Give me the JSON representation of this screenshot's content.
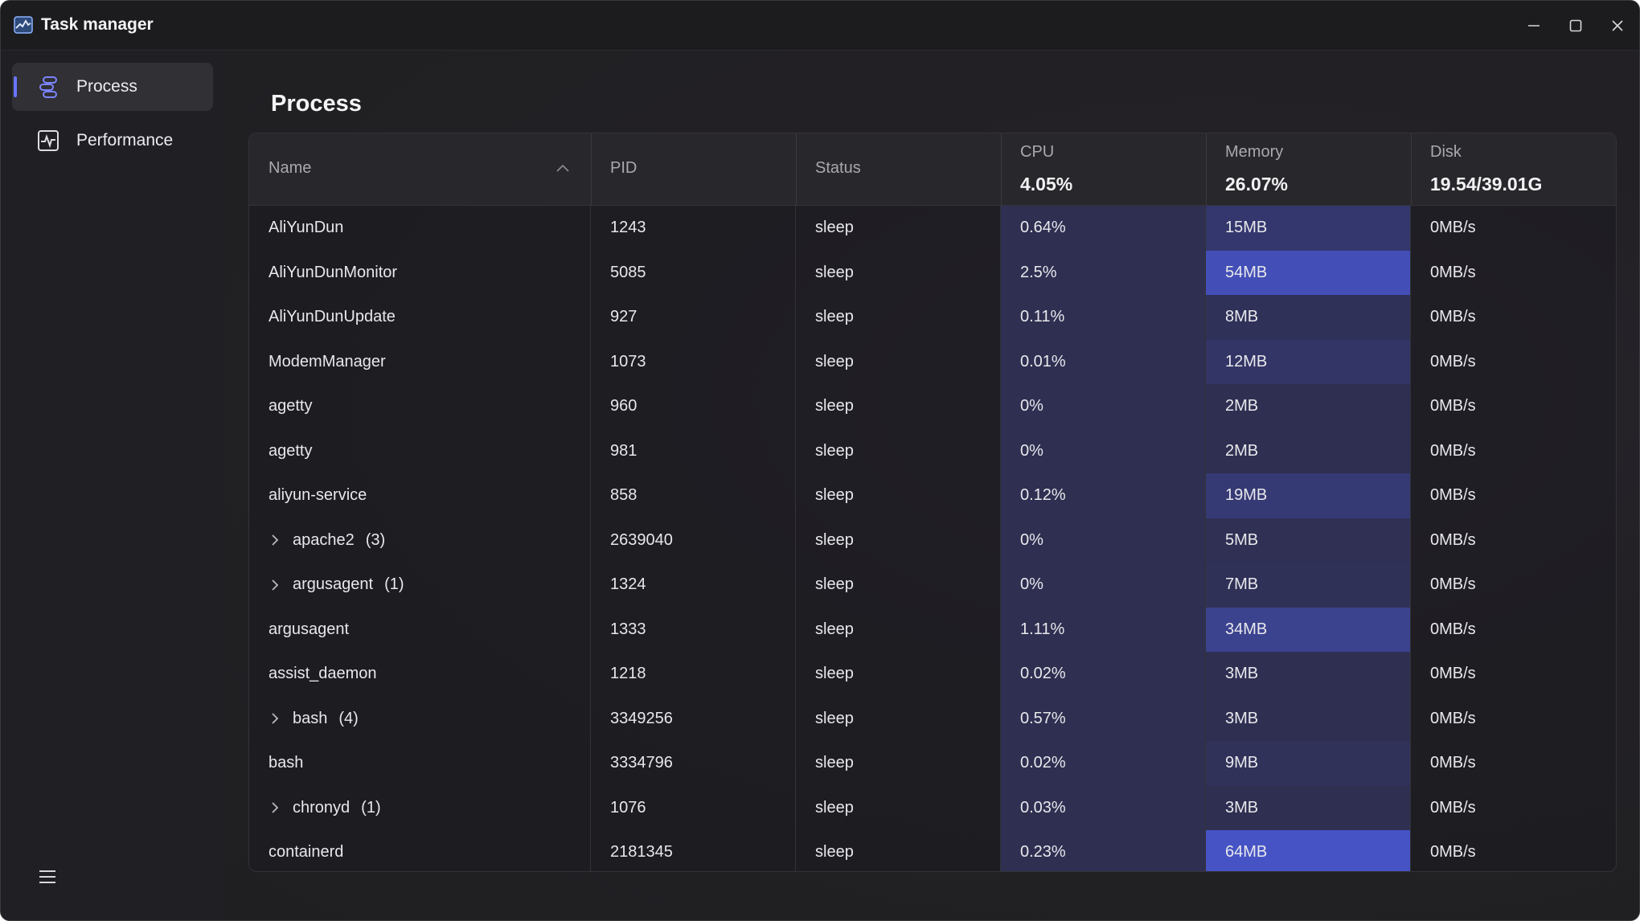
{
  "app": {
    "title": "Task manager"
  },
  "sidebar": {
    "items": [
      {
        "label": "Process",
        "icon": "process-icon",
        "active": true
      },
      {
        "label": "Performance",
        "icon": "performance-icon",
        "active": false
      }
    ],
    "menu_icon": "hamburger-menu-icon"
  },
  "main": {
    "title": "Process",
    "columns": {
      "name": "Name",
      "pid": "PID",
      "status": "Status",
      "cpu": "CPU",
      "cpu_total": "4.05%",
      "memory": "Memory",
      "memory_total": "26.07%",
      "disk": "Disk",
      "disk_total": "19.54/39.01G"
    },
    "rows": [
      {
        "name": "AliYunDun",
        "count": "",
        "pid": "1243",
        "status": "sleep",
        "cpu": "0.64%",
        "mem": "15MB",
        "disk": "0MB/s",
        "mem_level": 0.3
      },
      {
        "name": "AliYunDunMonitor",
        "count": "",
        "pid": "5085",
        "status": "sleep",
        "cpu": "2.5%",
        "mem": "54MB",
        "disk": "0MB/s",
        "mem_level": 0.85
      },
      {
        "name": "AliYunDunUpdate",
        "count": "",
        "pid": "927",
        "status": "sleep",
        "cpu": "0.11%",
        "mem": "8MB",
        "disk": "0MB/s",
        "mem_level": 0.15
      },
      {
        "name": "ModemManager",
        "count": "",
        "pid": "1073",
        "status": "sleep",
        "cpu": "0.01%",
        "mem": "12MB",
        "disk": "0MB/s",
        "mem_level": 0.25
      },
      {
        "name": "agetty",
        "count": "",
        "pid": "960",
        "status": "sleep",
        "cpu": "0%",
        "mem": "2MB",
        "disk": "0MB/s",
        "mem_level": 0.1
      },
      {
        "name": "agetty",
        "count": "",
        "pid": "981",
        "status": "sleep",
        "cpu": "0%",
        "mem": "2MB",
        "disk": "0MB/s",
        "mem_level": 0.1
      },
      {
        "name": "aliyun-service",
        "count": "",
        "pid": "858",
        "status": "sleep",
        "cpu": "0.12%",
        "mem": "19MB",
        "disk": "0MB/s",
        "mem_level": 0.35
      },
      {
        "name": "apache2",
        "count": "(3)",
        "pid": "2639040",
        "status": "sleep",
        "cpu": "0%",
        "mem": "5MB",
        "disk": "0MB/s",
        "mem_level": 0.12
      },
      {
        "name": "argusagent",
        "count": "(1)",
        "pid": "1324",
        "status": "sleep",
        "cpu": "0%",
        "mem": "7MB",
        "disk": "0MB/s",
        "mem_level": 0.14
      },
      {
        "name": "argusagent",
        "count": "",
        "pid": "1333",
        "status": "sleep",
        "cpu": "1.11%",
        "mem": "34MB",
        "disk": "0MB/s",
        "mem_level": 0.55
      },
      {
        "name": "assist_daemon",
        "count": "",
        "pid": "1218",
        "status": "sleep",
        "cpu": "0.02%",
        "mem": "3MB",
        "disk": "0MB/s",
        "mem_level": 0.1
      },
      {
        "name": "bash",
        "count": "(4)",
        "pid": "3349256",
        "status": "sleep",
        "cpu": "0.57%",
        "mem": "3MB",
        "disk": "0MB/s",
        "mem_level": 0.1
      },
      {
        "name": "bash",
        "count": "",
        "pid": "3334796",
        "status": "sleep",
        "cpu": "0.02%",
        "mem": "9MB",
        "disk": "0MB/s",
        "mem_level": 0.16
      },
      {
        "name": "chronyd",
        "count": "(1)",
        "pid": "1076",
        "status": "sleep",
        "cpu": "0.03%",
        "mem": "3MB",
        "disk": "0MB/s",
        "mem_level": 0.1
      },
      {
        "name": "containerd",
        "count": "",
        "pid": "2181345",
        "status": "sleep",
        "cpu": "0.23%",
        "mem": "64MB",
        "disk": "0MB/s",
        "mem_level": 0.95
      }
    ]
  },
  "colors": {
    "accent": "#6b74ff",
    "cpu_bg": "#2f2f52",
    "mem_low": "#2f2f52",
    "mem_high": "#4653c4"
  }
}
